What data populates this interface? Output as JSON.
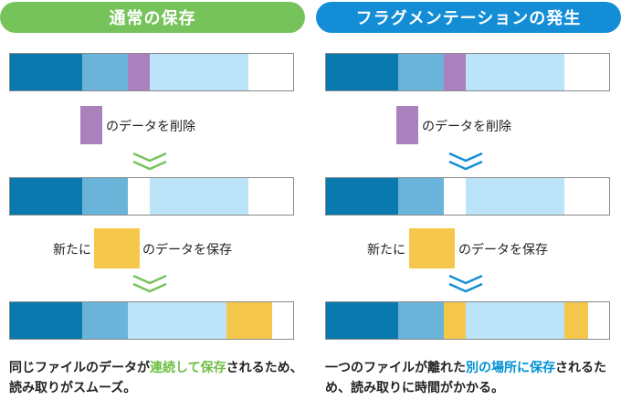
{
  "colors": {
    "block_a": "#0a79ad",
    "block_b": "#6ab4d9",
    "block_c": "#bce4f8",
    "deleted": "#aa80bd",
    "new": "#f5c84c",
    "green": "#77c35b",
    "blue": "#138ed6"
  },
  "left": {
    "title": "通常の保存",
    "delete_label": "のデータを削除",
    "new_prefix": "新たに",
    "new_suffix": "のデータを保存",
    "caption": {
      "part1": "同じファイルのデータが",
      "highlight": "連続して保存",
      "part2": "されるため、読み取りがスムーズ。"
    }
  },
  "right": {
    "title": "フラグメンテーションの発生",
    "delete_label": "のデータを削除",
    "new_prefix": "新たに",
    "new_suffix": "のデータを保存",
    "caption": {
      "part1": "一つのファイルが離れた",
      "highlight": "別の場所に保存",
      "part2": "されるため、読み取りに時間がかかる。"
    }
  },
  "icons": {
    "chevron": "double-chevron-down-icon"
  }
}
